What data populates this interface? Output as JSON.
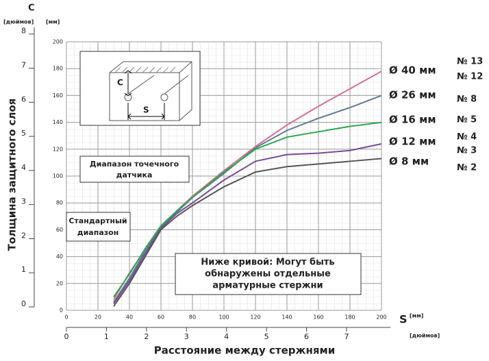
{
  "chart_data": {
    "type": "line",
    "y_axis_title": "C",
    "y_unit_in": "[дюймов]",
    "y_unit_mm": "[мм]",
    "x_axis_title": "S",
    "x_unit_mm": "[мм]",
    "x_unit_in": "[дюймов]",
    "ylabel": "Толщина защитного слоя",
    "xlabel": "Расстояние между стержнями",
    "x": [
      30,
      40,
      50,
      60,
      70,
      80,
      100,
      120,
      140,
      160,
      180,
      200
    ],
    "series": [
      {
        "name": "Ø 40 мм",
        "color": "#d4708f",
        "values": [
          8,
          28,
          45,
          62,
          74,
          85,
          104,
          122,
          138,
          152,
          165,
          178
        ]
      },
      {
        "name": "Ø 26 мм",
        "color": "#5b7a98",
        "values": [
          6,
          24,
          44,
          62,
          73,
          84,
          102,
          121,
          134,
          143,
          151,
          160
        ]
      },
      {
        "name": "Ø 16 мм",
        "color": "#2aa84a",
        "values": [
          10,
          27,
          46,
          63,
          74,
          84,
          103,
          120,
          129,
          133,
          137,
          140
        ]
      },
      {
        "name": "Ø 12 мм",
        "color": "#7a4a9a",
        "values": [
          5,
          22,
          42,
          61,
          72,
          80,
          97,
          111,
          116,
          117,
          119,
          124
        ]
      },
      {
        "name": "Ø 8 мм",
        "color": "#555555",
        "values": [
          3,
          20,
          40,
          60,
          70,
          78,
          92,
          103,
          107,
          109,
          111,
          113
        ]
      }
    ],
    "xlim": [
      0,
      200
    ],
    "xticks": [
      0,
      20,
      40,
      60,
      80,
      100,
      120,
      140,
      160,
      180,
      200
    ],
    "ylim": [
      0,
      200
    ],
    "yticks": [
      0,
      20,
      40,
      60,
      80,
      100,
      120,
      140,
      160,
      180,
      200
    ],
    "x2lim": [
      0,
      7.874
    ],
    "x2ticks": [
      0,
      1,
      2,
      3,
      4,
      5,
      6,
      7
    ],
    "y2lim": [
      0,
      7.874
    ],
    "y2ticks": [
      0,
      1,
      2,
      3,
      4,
      5,
      6,
      7,
      8
    ],
    "grid": true,
    "bar_numbers": [
      "№ 13",
      "№ 12",
      "№ 8",
      "№ 5",
      "№ 4",
      "№ 3",
      "№ 2"
    ],
    "annotations": {
      "inset": [
        "C",
        "S"
      ],
      "sensor": [
        "Диапазон точечного",
        "датчика"
      ],
      "standard": [
        "Стандартный",
        "диапазон"
      ],
      "below": [
        "Ниже кривой: Могут быть",
        "обнаружены отдельные",
        "арматурные стержни"
      ]
    }
  }
}
